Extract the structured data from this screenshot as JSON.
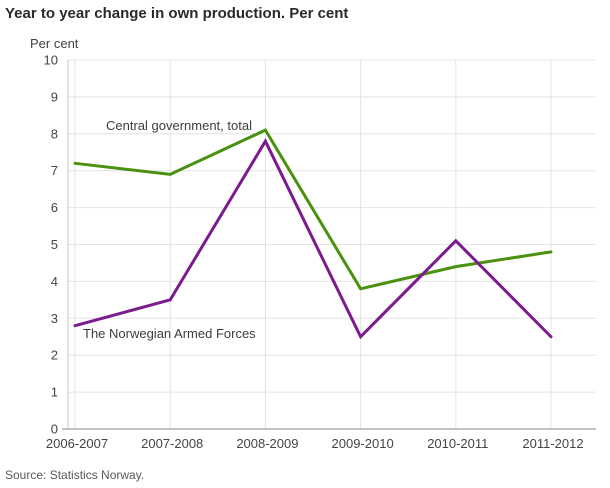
{
  "chart_data": {
    "type": "line",
    "title": "Year to year change in own production. Per cent",
    "ylabel": "Per cent",
    "xlabel": "",
    "ylim": [
      0,
      10
    ],
    "yticks": [
      "0",
      "1",
      "2",
      "3",
      "4",
      "5",
      "6",
      "7",
      "8",
      "9",
      "10"
    ],
    "grid": true,
    "legend_position": "inline-annotations",
    "categories": [
      "2006-2007",
      "2007-2008",
      "2008-2009",
      "2009-2010",
      "2010-2011",
      "2011-2012"
    ],
    "series": [
      {
        "name": "Central government, total",
        "values": [
          7.2,
          6.9,
          8.1,
          3.8,
          4.4,
          4.8
        ],
        "color": "#4A9110"
      },
      {
        "name": "The Norwegian Armed Forces",
        "values": [
          2.8,
          3.5,
          7.8,
          2.5,
          5.1,
          2.5
        ],
        "color": "#7B1B8E"
      }
    ],
    "colors": {
      "grid": "#e4e4e4",
      "x_axis": "#9d9d9d",
      "y_axis": "#c6c6c6",
      "tick_text": "#454545",
      "title_text": "#2a2a2a",
      "source_text": "#58595b"
    }
  },
  "footer": {
    "source": "Source: Statistics Norway."
  }
}
